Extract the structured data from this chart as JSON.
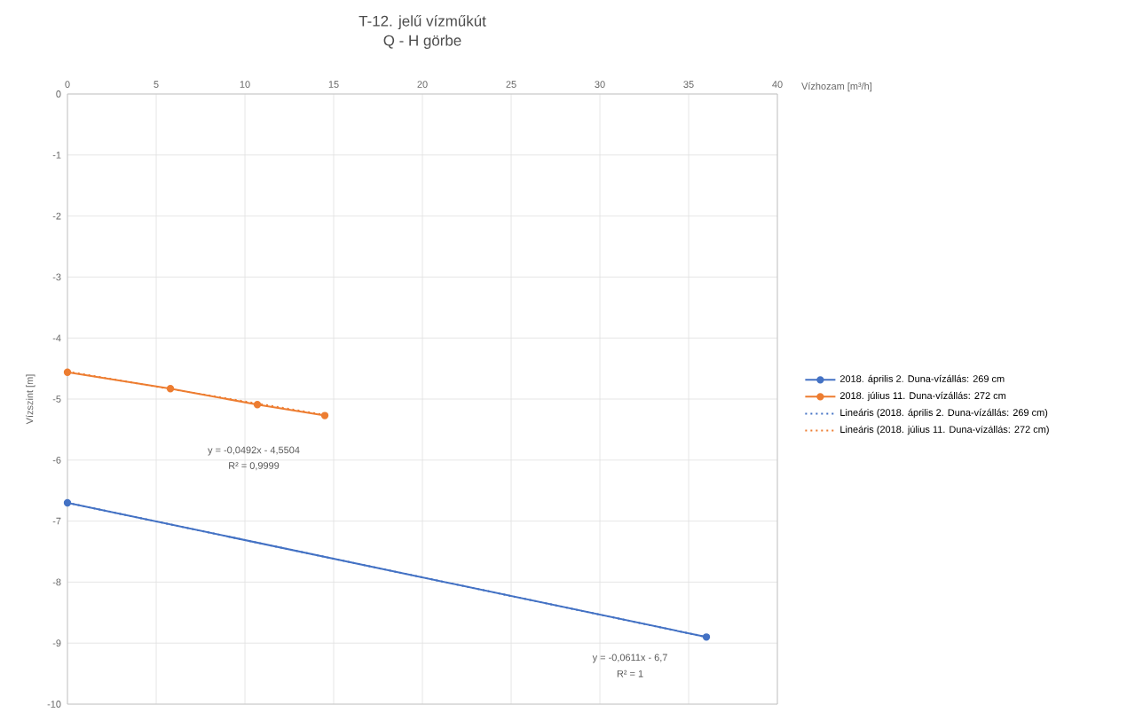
{
  "chart_data": {
    "type": "line",
    "title": "T-12. jelű vízműkút",
    "subtitle": "Q - H görbe",
    "xlabel": "Vízhozam [m³/h]",
    "ylabel": "Vízszint [m]",
    "xlim": [
      0,
      40
    ],
    "xticks": [
      0,
      5,
      10,
      15,
      20,
      25,
      30,
      35,
      40
    ],
    "ylim": [
      -10,
      0
    ],
    "yticks": [
      -10,
      -9,
      -8,
      -7,
      -6,
      -5,
      -4,
      -3,
      -2,
      -1,
      0
    ],
    "grid": true,
    "legend": "right",
    "series": [
      {
        "name": "2018. április 2. Duna-vízállás: 269 cm",
        "color": "#4472c4",
        "x": [
          0,
          36
        ],
        "values": [
          -6.7,
          -8.9
        ],
        "marker": "circle",
        "line_style": "solid"
      },
      {
        "name": "2018. július 11. Duna-vízállás: 272 cm",
        "color": "#ed7d31",
        "x": [
          0,
          5.8,
          10.7,
          14.5
        ],
        "values": [
          -4.56,
          -4.83,
          -5.09,
          -5.27
        ],
        "marker": "circle",
        "line_style": "solid"
      },
      {
        "name": "Lineáris (2018. április 2. Duna-vízállás: 269 cm)",
        "color": "#4472c4",
        "x": [
          0,
          36
        ],
        "values": [
          -6.7,
          -8.9
        ],
        "marker": "none",
        "line_style": "dotted"
      },
      {
        "name": "Lineáris (2018. július 11. Duna-vízállás: 272 cm)",
        "color": "#ed7d31",
        "x": [
          0,
          14.5
        ],
        "values": [
          -4.55,
          -5.26
        ],
        "marker": "none",
        "line_style": "dotted"
      }
    ],
    "annotations": [
      "y = -0,0492x - 4,5504",
      "R² = 0,9999",
      "y = -0,0611x - 6,7",
      "R² = 1"
    ]
  }
}
